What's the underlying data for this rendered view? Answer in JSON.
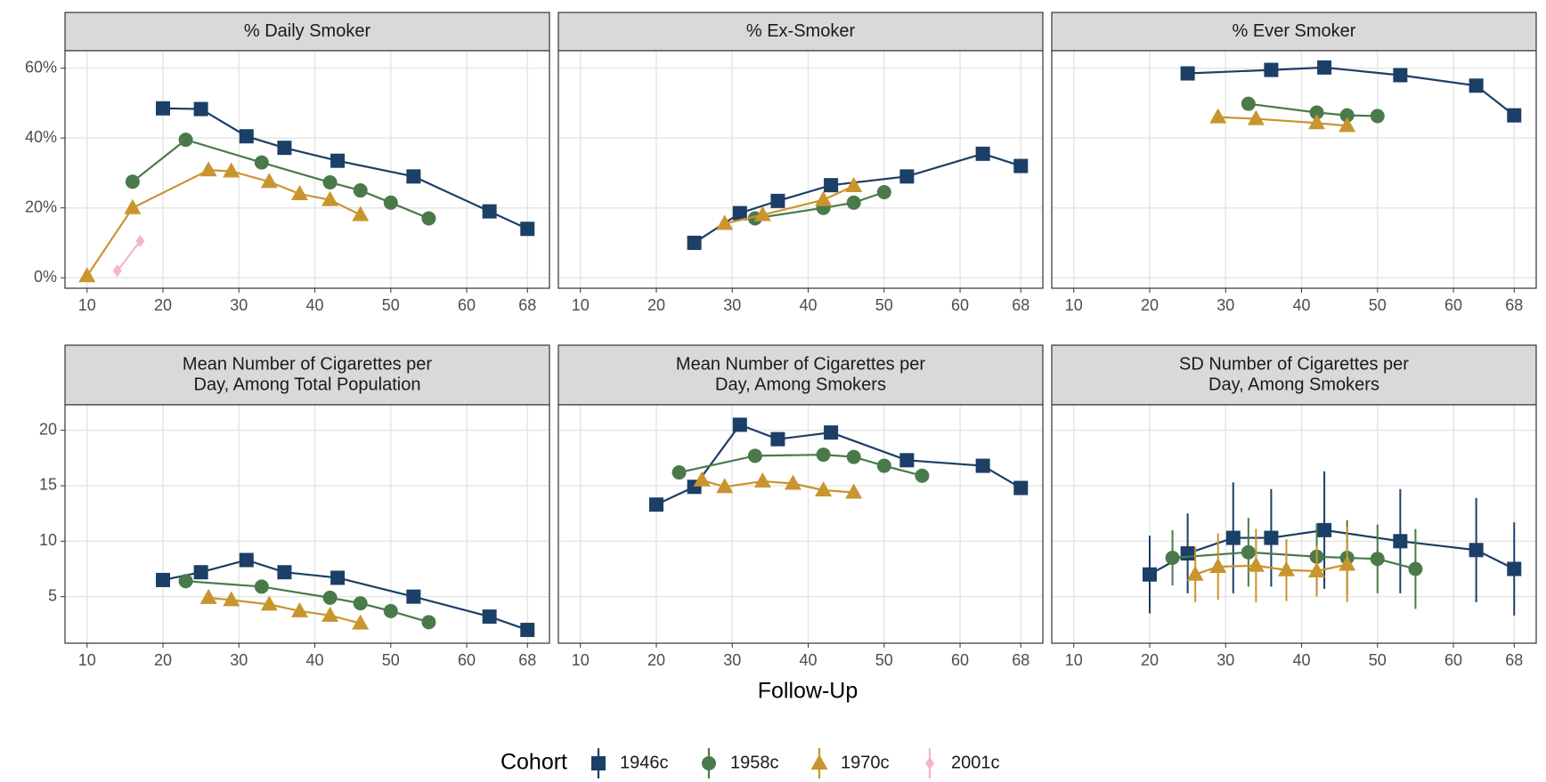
{
  "xlabel": "Follow-Up",
  "legend_title": "Cohort",
  "chart_data": [
    {
      "type": "line",
      "title": [
        "% Daily Smoker"
      ],
      "xlim": [
        7.1,
        70.9
      ],
      "xticks": [
        10,
        20,
        30,
        40,
        50,
        60,
        68
      ],
      "ylim": [
        -3,
        65
      ],
      "yticks": [
        {
          "value": 0,
          "label": "0%"
        },
        {
          "value": 20,
          "label": "20%"
        },
        {
          "value": 40,
          "label": "40%"
        },
        {
          "value": 60,
          "label": "60%"
        }
      ],
      "grid": true,
      "series": [
        {
          "name": "1946c",
          "color": "#1b3f66",
          "marker": "square",
          "x": [
            20,
            25,
            31,
            36,
            43,
            53,
            63,
            68
          ],
          "values": [
            48.5,
            48.3,
            40.5,
            37.2,
            33.5,
            29,
            19,
            14
          ]
        },
        {
          "name": "1958c",
          "color": "#4a7a4a",
          "marker": "circle",
          "x": [
            16,
            23,
            33,
            42,
            46,
            50,
            55
          ],
          "values": [
            27.5,
            39.5,
            33,
            27.3,
            25,
            21.5,
            17
          ]
        },
        {
          "name": "1970c",
          "color": "#c9952e",
          "marker": "triangle",
          "x": [
            10,
            16,
            26,
            29,
            34,
            38,
            42,
            46
          ],
          "values": [
            0.5,
            20,
            30.8,
            30.5,
            27.5,
            24,
            22.3,
            18
          ]
        },
        {
          "name": "2001c",
          "color": "#f4b6c2",
          "marker": "diamond",
          "x": [
            14,
            17
          ],
          "values": [
            2,
            10.5
          ]
        }
      ]
    },
    {
      "type": "line",
      "title": [
        "% Ex-Smoker"
      ],
      "xlim": [
        7.1,
        70.9
      ],
      "xticks": [
        10,
        20,
        30,
        40,
        50,
        60,
        68
      ],
      "ylim": [
        -3,
        65
      ],
      "yticks": [
        0,
        20,
        40,
        60
      ],
      "grid": true,
      "series": [
        {
          "name": "1946c",
          "color": "#1b3f66",
          "marker": "square",
          "x": [
            25,
            31,
            36,
            43,
            53,
            63,
            68
          ],
          "values": [
            10,
            18.5,
            22,
            26.5,
            29,
            35.5,
            32
          ]
        },
        {
          "name": "1958c",
          "color": "#4a7a4a",
          "marker": "circle",
          "x": [
            33,
            42,
            46,
            50
          ],
          "values": [
            17,
            20,
            21.5,
            24.5
          ]
        },
        {
          "name": "1970c",
          "color": "#c9952e",
          "marker": "triangle",
          "x": [
            29,
            34,
            42,
            46
          ],
          "values": [
            15.5,
            18,
            22.3,
            26.3
          ]
        }
      ]
    },
    {
      "type": "line",
      "title": [
        "% Ever Smoker"
      ],
      "xlim": [
        7.1,
        70.9
      ],
      "xticks": [
        10,
        20,
        30,
        40,
        50,
        60,
        68
      ],
      "ylim": [
        -3,
        65
      ],
      "yticks": [
        0,
        20,
        40,
        60
      ],
      "grid": true,
      "series": [
        {
          "name": "1946c",
          "color": "#1b3f66",
          "marker": "square",
          "x": [
            25,
            36,
            43,
            53,
            63,
            68
          ],
          "values": [
            58.5,
            59.5,
            60.2,
            58,
            55,
            46.5
          ]
        },
        {
          "name": "1958c",
          "color": "#4a7a4a",
          "marker": "circle",
          "x": [
            33,
            42,
            46,
            50
          ],
          "values": [
            49.8,
            47.3,
            46.5,
            46.3
          ]
        },
        {
          "name": "1970c",
          "color": "#c9952e",
          "marker": "triangle",
          "x": [
            29,
            34,
            42,
            46
          ],
          "values": [
            46,
            45.5,
            44.3,
            43.5
          ]
        }
      ]
    },
    {
      "type": "line",
      "title": [
        "Mean Number of Cigarettes per",
        "Day, Among Total Population"
      ],
      "xlim": [
        7.1,
        70.9
      ],
      "xticks": [
        10,
        20,
        30,
        40,
        50,
        60,
        68
      ],
      "ylim": [
        0.8,
        22.3
      ],
      "yticks": [
        5,
        10,
        15,
        20
      ],
      "grid": true,
      "series": [
        {
          "name": "1946c",
          "color": "#1b3f66",
          "marker": "square",
          "x": [
            20,
            25,
            31,
            36,
            43,
            53,
            63,
            68
          ],
          "values": [
            6.5,
            7.2,
            8.3,
            7.2,
            6.7,
            5,
            3.2,
            2
          ]
        },
        {
          "name": "1958c",
          "color": "#4a7a4a",
          "marker": "circle",
          "x": [
            23,
            33,
            42,
            46,
            50,
            55
          ],
          "values": [
            6.4,
            5.9,
            4.9,
            4.4,
            3.7,
            2.7
          ]
        },
        {
          "name": "1970c",
          "color": "#c9952e",
          "marker": "triangle",
          "x": [
            26,
            29,
            34,
            38,
            42,
            46
          ],
          "values": [
            4.9,
            4.7,
            4.3,
            3.7,
            3.3,
            2.6
          ]
        }
      ]
    },
    {
      "type": "line",
      "title": [
        "Mean Number of Cigarettes per",
        "Day, Among Smokers"
      ],
      "xlim": [
        7.1,
        70.9
      ],
      "xticks": [
        10,
        20,
        30,
        40,
        50,
        60,
        68
      ],
      "ylim": [
        0.8,
        22.3
      ],
      "yticks": [
        5,
        10,
        15,
        20
      ],
      "grid": true,
      "series": [
        {
          "name": "1946c",
          "color": "#1b3f66",
          "marker": "square",
          "x": [
            20,
            25,
            31,
            36,
            43,
            53,
            63,
            68
          ],
          "values": [
            13.3,
            14.9,
            20.5,
            19.2,
            19.8,
            17.3,
            16.8,
            14.8
          ]
        },
        {
          "name": "1958c",
          "color": "#4a7a4a",
          "marker": "circle",
          "x": [
            23,
            33,
            42,
            46,
            50,
            55
          ],
          "values": [
            16.2,
            17.7,
            17.8,
            17.6,
            16.8,
            15.9
          ]
        },
        {
          "name": "1970c",
          "color": "#c9952e",
          "marker": "triangle",
          "x": [
            26,
            29,
            34,
            38,
            42,
            46
          ],
          "values": [
            15.5,
            14.9,
            15.4,
            15.2,
            14.6,
            14.4
          ]
        }
      ]
    },
    {
      "type": "line",
      "title": [
        "SD Number of Cigarettes per",
        "Day, Among Smokers"
      ],
      "xlim": [
        7.1,
        70.9
      ],
      "xticks": [
        10,
        20,
        30,
        40,
        50,
        60,
        68
      ],
      "ylim": [
        0.8,
        22.3
      ],
      "yticks": [
        5,
        10,
        15,
        20
      ],
      "grid": true,
      "series": [
        {
          "name": "1946c",
          "color": "#1b3f66",
          "marker": "square",
          "x": [
            20,
            25,
            31,
            36,
            43,
            53,
            63,
            68
          ],
          "values": [
            7,
            8.9,
            10.3,
            10.3,
            11,
            10,
            9.2,
            7.5
          ],
          "errors": [
            3.5,
            3.6,
            5,
            4.4,
            5.3,
            4.7,
            4.7,
            4.2
          ]
        },
        {
          "name": "1958c",
          "color": "#4a7a4a",
          "marker": "circle",
          "x": [
            23,
            33,
            42,
            46,
            50,
            55
          ],
          "values": [
            8.5,
            9,
            8.6,
            8.5,
            8.4,
            7.5
          ],
          "errors": [
            2.5,
            3.1,
            3,
            3.4,
            3.1,
            3.6
          ]
        },
        {
          "name": "1970c",
          "color": "#c9952e",
          "marker": "triangle",
          "x": [
            26,
            29,
            34,
            38,
            42,
            46
          ],
          "values": [
            7,
            7.7,
            7.8,
            7.4,
            7.3,
            7.9
          ],
          "errors": [
            2.5,
            3,
            3.3,
            2.8,
            2.3,
            3.4
          ]
        }
      ]
    }
  ]
}
